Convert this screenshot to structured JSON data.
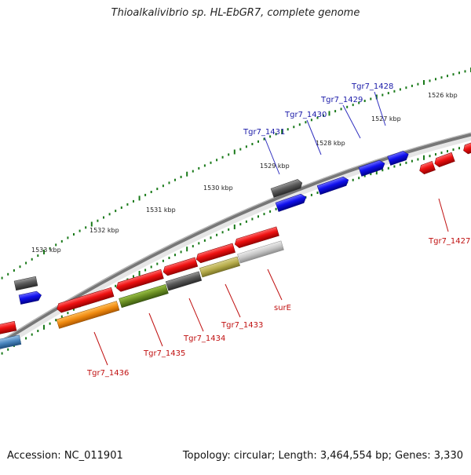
{
  "title": "Thioalkalivibrio sp. HL-EbGR7, complete genome",
  "footer": {
    "accession": "Accession: NC_011901",
    "summary": "Topology: circular; Length: 3,464,554 bp; Genes: 3,330"
  },
  "scale_labels": [
    "1526 kbp",
    "1527 kbp",
    "1528 kbp",
    "1529 kbp",
    "1530 kbp",
    "1531 kbp",
    "1532 kbp",
    "1533 kbp"
  ],
  "gene_labels_top": [
    "Tgr7_1428",
    "Tgr7_1429",
    "Tgr7_1430",
    "Tgr7_1431"
  ],
  "gene_labels_bottom": [
    "Tgr7_1427",
    "surE",
    "Tgr7_1433",
    "Tgr7_1434",
    "Tgr7_1435",
    "Tgr7_1436"
  ],
  "colors": {
    "forward_gene": "#1010dd",
    "reverse_gene": "#e01010",
    "pseudo_gene": "#555555",
    "label_top": "#1a1aa8",
    "label_bottom": "#c01010",
    "tick": "#1a7a1a",
    "backbone": "#777777"
  }
}
